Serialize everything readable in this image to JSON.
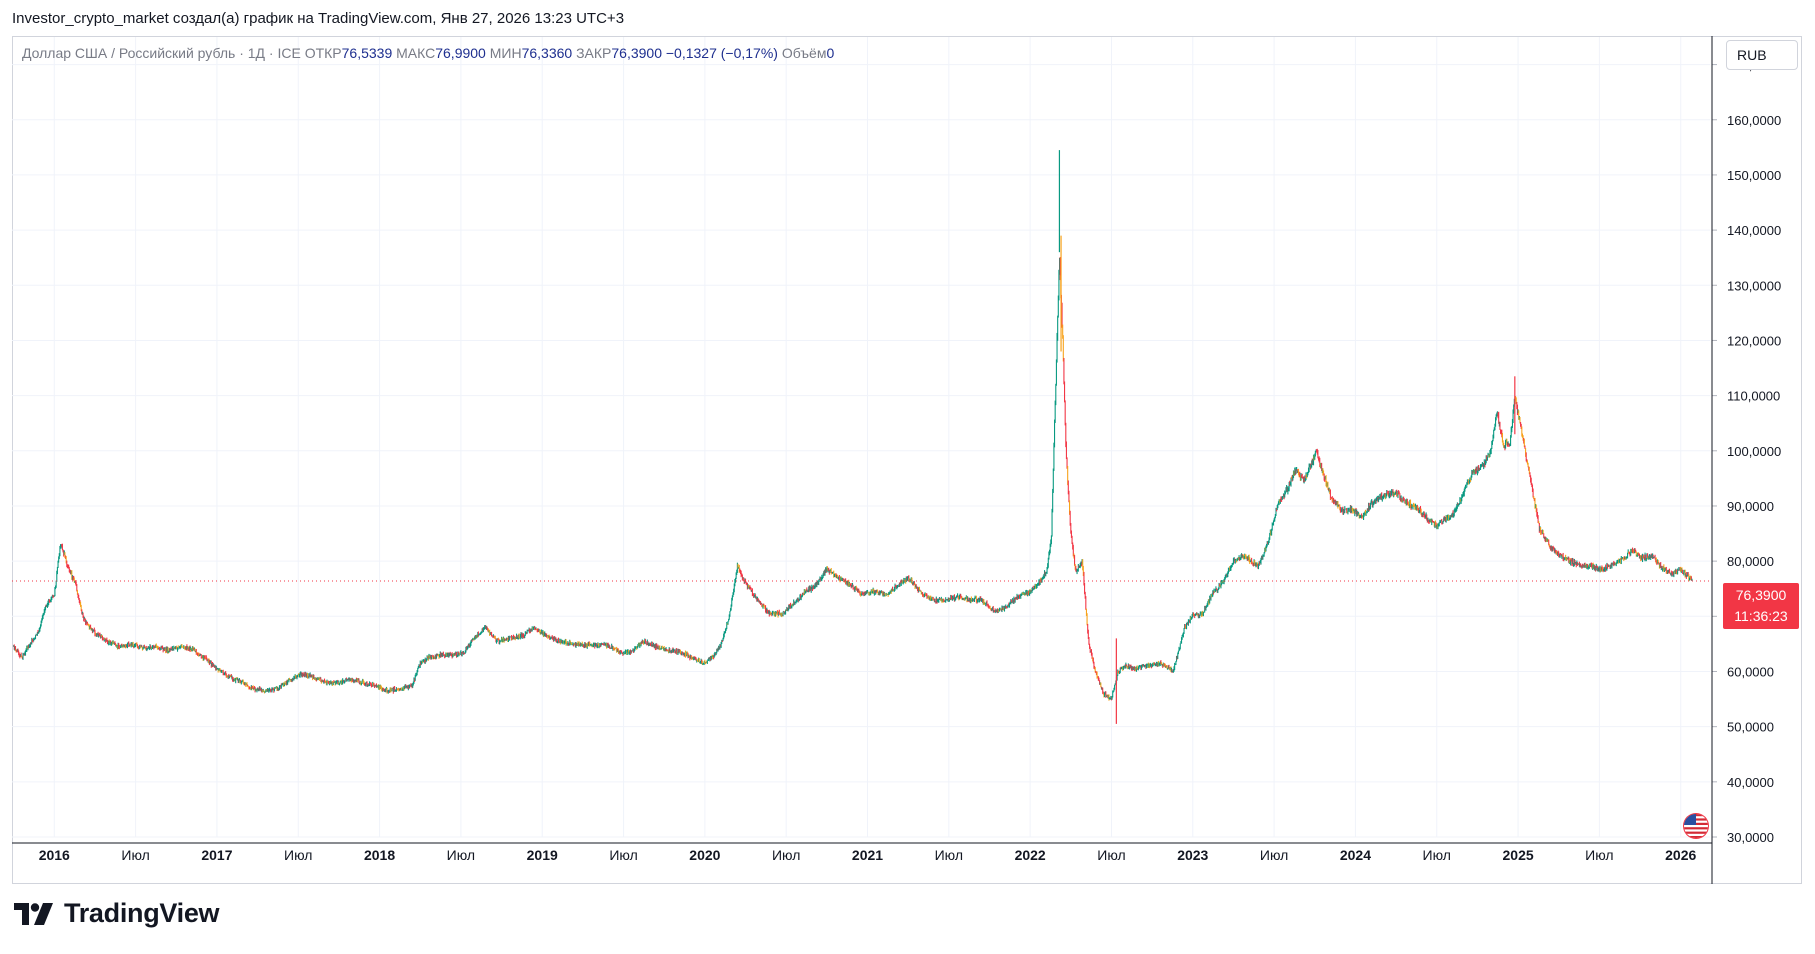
{
  "header": {
    "caption": "Investor_crypto_market создал(а) график на TradingView.com, Янв 27, 2026 13:23 UTC+3"
  },
  "legend": {
    "symbol": "Доллар США / Российский рубль · 1Д · ICE",
    "open_label": "ОТКР",
    "open_value": "76,5339",
    "high_label": "МАКС",
    "high_value": "76,9900",
    "low_label": "МИН",
    "low_value": "76,3360",
    "close_label": "ЗАКР",
    "close_value": "76,3900",
    "change": "−0,1327 (−0,17%)",
    "volume_label": "Объём",
    "volume_value": "0"
  },
  "currency_button": {
    "label": "RUB"
  },
  "price_tag": {
    "price": "76,3900",
    "countdown": "11:36:23"
  },
  "brand": {
    "name": "TradingView"
  },
  "colors": {
    "up": "#089981",
    "down": "#f23645",
    "grid": "#f0f3fa",
    "last_price_line": "#f23645",
    "axis_text": "#131722"
  },
  "chart_data": {
    "type": "candlestick",
    "title": "Доллар США / Российский рубль · 1Д · ICE",
    "ylim": [
      30,
      175
    ],
    "y_ticks": [
      {
        "v": 30,
        "label": "30,0000"
      },
      {
        "v": 40,
        "label": "40,0000"
      },
      {
        "v": 50,
        "label": "50,0000"
      },
      {
        "v": 60,
        "label": "60,0000"
      },
      {
        "v": 70,
        "label": "70,0000"
      },
      {
        "v": 80,
        "label": "80,0000"
      },
      {
        "v": 90,
        "label": "90,0000"
      },
      {
        "v": 100,
        "label": "100,0000"
      },
      {
        "v": 110,
        "label": "110,0000"
      },
      {
        "v": 120,
        "label": "120,0000"
      },
      {
        "v": 130,
        "label": "130,0000"
      },
      {
        "v": 140,
        "label": "140,0000"
      },
      {
        "v": 150,
        "label": "150,0000"
      },
      {
        "v": 160,
        "label": "160,0000"
      },
      {
        "v": 170,
        "label": "170,0000"
      }
    ],
    "x_ticks": [
      {
        "t": 2016.0,
        "label": "2016",
        "bold": true
      },
      {
        "t": 2016.5,
        "label": "Июл",
        "bold": false
      },
      {
        "t": 2017.0,
        "label": "2017",
        "bold": true
      },
      {
        "t": 2017.5,
        "label": "Июл",
        "bold": false
      },
      {
        "t": 2018.0,
        "label": "2018",
        "bold": true
      },
      {
        "t": 2018.5,
        "label": "Июл",
        "bold": false
      },
      {
        "t": 2019.0,
        "label": "2019",
        "bold": true
      },
      {
        "t": 2019.5,
        "label": "Июл",
        "bold": false
      },
      {
        "t": 2020.0,
        "label": "2020",
        "bold": true
      },
      {
        "t": 2020.5,
        "label": "Июл",
        "bold": false
      },
      {
        "t": 2021.0,
        "label": "2021",
        "bold": true
      },
      {
        "t": 2021.5,
        "label": "Июл",
        "bold": false
      },
      {
        "t": 2022.0,
        "label": "2022",
        "bold": true
      },
      {
        "t": 2022.5,
        "label": "Июл",
        "bold": false
      },
      {
        "t": 2023.0,
        "label": "2023",
        "bold": true
      },
      {
        "t": 2023.5,
        "label": "Июл",
        "bold": false
      },
      {
        "t": 2024.0,
        "label": "2024",
        "bold": true
      },
      {
        "t": 2024.5,
        "label": "Июл",
        "bold": false
      },
      {
        "t": 2025.0,
        "label": "2025",
        "bold": true
      },
      {
        "t": 2025.5,
        "label": "Июл",
        "bold": false
      },
      {
        "t": 2026.0,
        "label": "2026",
        "bold": true
      }
    ],
    "xlim": [
      2015.74,
      2026.18
    ],
    "last_price": 76.39,
    "price_path": [
      [
        2015.75,
        64.5
      ],
      [
        2015.8,
        62.5
      ],
      [
        2015.85,
        65.0
      ],
      [
        2015.9,
        67.0
      ],
      [
        2015.95,
        72.0
      ],
      [
        2016.0,
        74.0
      ],
      [
        2016.04,
        83.5
      ],
      [
        2016.08,
        79.0
      ],
      [
        2016.13,
        76.0
      ],
      [
        2016.18,
        69.5
      ],
      [
        2016.25,
        67.0
      ],
      [
        2016.32,
        65.5
      ],
      [
        2016.4,
        64.5
      ],
      [
        2016.48,
        65.0
      ],
      [
        2016.55,
        64.2
      ],
      [
        2016.62,
        64.5
      ],
      [
        2016.7,
        63.8
      ],
      [
        2016.78,
        64.5
      ],
      [
        2016.85,
        64.0
      ],
      [
        2016.92,
        62.5
      ],
      [
        2017.0,
        60.5
      ],
      [
        2017.08,
        59.0
      ],
      [
        2017.15,
        58.0
      ],
      [
        2017.22,
        57.0
      ],
      [
        2017.3,
        56.5
      ],
      [
        2017.38,
        57.0
      ],
      [
        2017.45,
        58.5
      ],
      [
        2017.52,
        59.5
      ],
      [
        2017.6,
        59.0
      ],
      [
        2017.68,
        58.0
      ],
      [
        2017.75,
        58.0
      ],
      [
        2017.82,
        58.5
      ],
      [
        2017.9,
        58.0
      ],
      [
        2017.97,
        57.5
      ],
      [
        2018.05,
        56.5
      ],
      [
        2018.12,
        56.8
      ],
      [
        2018.2,
        57.5
      ],
      [
        2018.25,
        61.5
      ],
      [
        2018.3,
        62.5
      ],
      [
        2018.38,
        63.0
      ],
      [
        2018.45,
        62.8
      ],
      [
        2018.52,
        63.5
      ],
      [
        2018.58,
        66.0
      ],
      [
        2018.65,
        68.0
      ],
      [
        2018.72,
        65.5
      ],
      [
        2018.8,
        66.0
      ],
      [
        2018.88,
        66.5
      ],
      [
        2018.95,
        68.0
      ],
      [
        2019.02,
        66.5
      ],
      [
        2019.1,
        65.5
      ],
      [
        2019.18,
        65.0
      ],
      [
        2019.25,
        64.8
      ],
      [
        2019.32,
        64.8
      ],
      [
        2019.4,
        64.8
      ],
      [
        2019.48,
        63.5
      ],
      [
        2019.55,
        63.5
      ],
      [
        2019.62,
        65.5
      ],
      [
        2019.7,
        64.5
      ],
      [
        2019.78,
        63.8
      ],
      [
        2019.85,
        63.5
      ],
      [
        2019.92,
        62.5
      ],
      [
        2020.0,
        61.5
      ],
      [
        2020.06,
        63.0
      ],
      [
        2020.1,
        65.0
      ],
      [
        2020.15,
        70.0
      ],
      [
        2020.2,
        79.0
      ],
      [
        2020.25,
        76.0
      ],
      [
        2020.32,
        73.0
      ],
      [
        2020.4,
        70.5
      ],
      [
        2020.48,
        70.5
      ],
      [
        2020.55,
        72.5
      ],
      [
        2020.62,
        74.5
      ],
      [
        2020.68,
        75.5
      ],
      [
        2020.75,
        78.5
      ],
      [
        2020.82,
        77.0
      ],
      [
        2020.9,
        75.5
      ],
      [
        2020.97,
        74.0
      ],
      [
        2021.05,
        74.5
      ],
      [
        2021.12,
        74.0
      ],
      [
        2021.18,
        75.5
      ],
      [
        2021.25,
        77.0
      ],
      [
        2021.32,
        74.5
      ],
      [
        2021.4,
        73.0
      ],
      [
        2021.48,
        73.0
      ],
      [
        2021.55,
        73.5
      ],
      [
        2021.62,
        73.0
      ],
      [
        2021.7,
        73.0
      ],
      [
        2021.78,
        71.0
      ],
      [
        2021.85,
        71.5
      ],
      [
        2021.92,
        73.5
      ],
      [
        2022.0,
        74.5
      ],
      [
        2022.05,
        76.0
      ],
      [
        2022.1,
        78.0
      ],
      [
        2022.13,
        84.0
      ],
      [
        2022.16,
        115.0
      ],
      [
        2022.18,
        135.0
      ],
      [
        2022.2,
        120.0
      ],
      [
        2022.22,
        100.0
      ],
      [
        2022.25,
        85.0
      ],
      [
        2022.28,
        78.0
      ],
      [
        2022.32,
        80.0
      ],
      [
        2022.36,
        65.0
      ],
      [
        2022.4,
        60.0
      ],
      [
        2022.45,
        56.0
      ],
      [
        2022.5,
        55.0
      ],
      [
        2022.54,
        60.0
      ],
      [
        2022.58,
        61.0
      ],
      [
        2022.65,
        60.5
      ],
      [
        2022.72,
        61.0
      ],
      [
        2022.8,
        61.5
      ],
      [
        2022.88,
        60.0
      ],
      [
        2022.95,
        68.0
      ],
      [
        2023.0,
        70.0
      ],
      [
        2023.06,
        70.5
      ],
      [
        2023.12,
        74.0
      ],
      [
        2023.18,
        76.0
      ],
      [
        2023.25,
        80.0
      ],
      [
        2023.32,
        81.0
      ],
      [
        2023.4,
        79.0
      ],
      [
        2023.46,
        83.0
      ],
      [
        2023.52,
        90.0
      ],
      [
        2023.58,
        93.0
      ],
      [
        2023.63,
        96.5
      ],
      [
        2023.68,
        94.5
      ],
      [
        2023.72,
        97.0
      ],
      [
        2023.76,
        100.0
      ],
      [
        2023.8,
        96.0
      ],
      [
        2023.85,
        91.5
      ],
      [
        2023.92,
        89.0
      ],
      [
        2023.97,
        89.5
      ],
      [
        2024.04,
        88.0
      ],
      [
        2024.1,
        90.5
      ],
      [
        2024.18,
        92.0
      ],
      [
        2024.25,
        92.5
      ],
      [
        2024.32,
        90.5
      ],
      [
        2024.4,
        89.0
      ],
      [
        2024.45,
        87.5
      ],
      [
        2024.5,
        86.5
      ],
      [
        2024.55,
        87.5
      ],
      [
        2024.6,
        88.5
      ],
      [
        2024.66,
        92.0
      ],
      [
        2024.72,
        96.0
      ],
      [
        2024.78,
        97.0
      ],
      [
        2024.83,
        100.0
      ],
      [
        2024.87,
        107.0
      ],
      [
        2024.91,
        101.0
      ],
      [
        2024.95,
        101.5
      ],
      [
        2024.98,
        110.0
      ],
      [
        2025.03,
        102.0
      ],
      [
        2025.08,
        94.0
      ],
      [
        2025.13,
        86.0
      ],
      [
        2025.2,
        82.5
      ],
      [
        2025.28,
        80.5
      ],
      [
        2025.36,
        79.5
      ],
      [
        2025.45,
        79.0
      ],
      [
        2025.52,
        78.5
      ],
      [
        2025.58,
        79.5
      ],
      [
        2025.65,
        80.5
      ],
      [
        2025.7,
        82.0
      ],
      [
        2025.76,
        80.5
      ],
      [
        2025.82,
        81.0
      ],
      [
        2025.88,
        79.0
      ],
      [
        2025.94,
        77.5
      ],
      [
        2026.0,
        78.5
      ],
      [
        2026.05,
        77.0
      ],
      [
        2026.07,
        76.39
      ]
    ]
  }
}
